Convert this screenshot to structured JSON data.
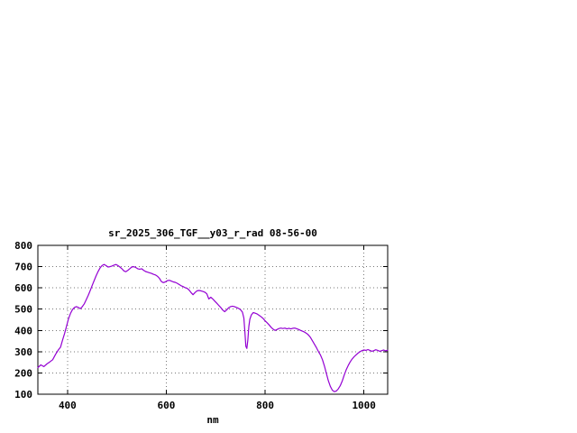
{
  "window": {
    "background": "#ffffff"
  },
  "chart_data": {
    "type": "line",
    "title": "sr_2025_306_TGF__y03_r_rad 08-56-00",
    "xlabel": "nm",
    "ylabel": "",
    "xlim": [
      340,
      1048
    ],
    "ylim": [
      100,
      800
    ],
    "x_ticks": [
      400,
      600,
      800,
      1000
    ],
    "y_ticks": [
      100,
      200,
      300,
      400,
      500,
      600,
      700,
      800
    ],
    "grid": true,
    "legend": "none",
    "series": [
      {
        "name": "sr_2025_306_TGF__y03_r_rad",
        "color": "#9400d3",
        "points": [
          [
            340,
            225
          ],
          [
            346,
            238
          ],
          [
            352,
            230
          ],
          [
            358,
            242
          ],
          [
            364,
            252
          ],
          [
            370,
            262
          ],
          [
            376,
            288
          ],
          [
            382,
            310
          ],
          [
            386,
            322
          ],
          [
            390,
            355
          ],
          [
            394,
            385
          ],
          [
            398,
            420
          ],
          [
            402,
            455
          ],
          [
            406,
            480
          ],
          [
            410,
            498
          ],
          [
            414,
            508
          ],
          [
            418,
            512
          ],
          [
            422,
            508
          ],
          [
            426,
            502
          ],
          [
            430,
            512
          ],
          [
            434,
            525
          ],
          [
            438,
            545
          ],
          [
            442,
            565
          ],
          [
            446,
            588
          ],
          [
            450,
            612
          ],
          [
            454,
            635
          ],
          [
            458,
            658
          ],
          [
            462,
            678
          ],
          [
            466,
            695
          ],
          [
            470,
            705
          ],
          [
            474,
            710
          ],
          [
            478,
            705
          ],
          [
            482,
            698
          ],
          [
            486,
            700
          ],
          [
            490,
            703
          ],
          [
            494,
            707
          ],
          [
            498,
            710
          ],
          [
            502,
            705
          ],
          [
            506,
            698
          ],
          [
            510,
            690
          ],
          [
            514,
            680
          ],
          [
            518,
            676
          ],
          [
            522,
            682
          ],
          [
            526,
            690
          ],
          [
            530,
            698
          ],
          [
            534,
            700
          ],
          [
            538,
            696
          ],
          [
            542,
            690
          ],
          [
            546,
            688
          ],
          [
            550,
            690
          ],
          [
            554,
            683
          ],
          [
            558,
            677
          ],
          [
            562,
            674
          ],
          [
            566,
            671
          ],
          [
            570,
            668
          ],
          [
            574,
            664
          ],
          [
            578,
            661
          ],
          [
            582,
            655
          ],
          [
            586,
            645
          ],
          [
            590,
            630
          ],
          [
            594,
            625
          ],
          [
            598,
            628
          ],
          [
            602,
            634
          ],
          [
            606,
            636
          ],
          [
            610,
            632
          ],
          [
            614,
            628
          ],
          [
            618,
            626
          ],
          [
            622,
            622
          ],
          [
            626,
            616
          ],
          [
            630,
            610
          ],
          [
            634,
            606
          ],
          [
            638,
            601
          ],
          [
            642,
            598
          ],
          [
            646,
            590
          ],
          [
            650,
            578
          ],
          [
            654,
            568
          ],
          [
            658,
            578
          ],
          [
            662,
            586
          ],
          [
            666,
            588
          ],
          [
            670,
            586
          ],
          [
            674,
            583
          ],
          [
            678,
            580
          ],
          [
            682,
            572
          ],
          [
            686,
            548
          ],
          [
            690,
            556
          ],
          [
            694,
            548
          ],
          [
            698,
            538
          ],
          [
            702,
            528
          ],
          [
            706,
            518
          ],
          [
            710,
            508
          ],
          [
            714,
            496
          ],
          [
            718,
            488
          ],
          [
            722,
            496
          ],
          [
            726,
            506
          ],
          [
            730,
            512
          ],
          [
            734,
            514
          ],
          [
            738,
            512
          ],
          [
            742,
            508
          ],
          [
            746,
            504
          ],
          [
            750,
            498
          ],
          [
            754,
            486
          ],
          [
            757,
            458
          ],
          [
            759,
            395
          ],
          [
            761,
            325
          ],
          [
            763,
            315
          ],
          [
            765,
            355
          ],
          [
            767,
            418
          ],
          [
            769,
            452
          ],
          [
            772,
            472
          ],
          [
            776,
            484
          ],
          [
            780,
            481
          ],
          [
            784,
            477
          ],
          [
            788,
            471
          ],
          [
            792,
            464
          ],
          [
            796,
            456
          ],
          [
            800,
            445
          ],
          [
            804,
            436
          ],
          [
            808,
            426
          ],
          [
            812,
            415
          ],
          [
            816,
            406
          ],
          [
            820,
            400
          ],
          [
            824,
            404
          ],
          [
            828,
            409
          ],
          [
            832,
            411
          ],
          [
            836,
            409
          ],
          [
            840,
            411
          ],
          [
            844,
            407
          ],
          [
            848,
            410
          ],
          [
            852,
            407
          ],
          [
            856,
            410
          ],
          [
            860,
            411
          ],
          [
            864,
            408
          ],
          [
            868,
            404
          ],
          [
            872,
            400
          ],
          [
            876,
            396
          ],
          [
            880,
            392
          ],
          [
            884,
            386
          ],
          [
            888,
            378
          ],
          [
            892,
            366
          ],
          [
            896,
            350
          ],
          [
            900,
            334
          ],
          [
            904,
            318
          ],
          [
            908,
            300
          ],
          [
            912,
            284
          ],
          [
            916,
            262
          ],
          [
            920,
            232
          ],
          [
            924,
            198
          ],
          [
            928,
            163
          ],
          [
            932,
            137
          ],
          [
            936,
            119
          ],
          [
            940,
            112
          ],
          [
            944,
            115
          ],
          [
            948,
            125
          ],
          [
            952,
            140
          ],
          [
            956,
            162
          ],
          [
            960,
            190
          ],
          [
            964,
            215
          ],
          [
            968,
            235
          ],
          [
            972,
            252
          ],
          [
            976,
            265
          ],
          [
            980,
            276
          ],
          [
            984,
            285
          ],
          [
            988,
            293
          ],
          [
            992,
            300
          ],
          [
            996,
            305
          ],
          [
            1000,
            308
          ],
          [
            1004,
            306
          ],
          [
            1008,
            310
          ],
          [
            1012,
            306
          ],
          [
            1016,
            302
          ],
          [
            1020,
            305
          ],
          [
            1024,
            309
          ],
          [
            1028,
            306
          ],
          [
            1032,
            302
          ],
          [
            1036,
            305
          ],
          [
            1040,
            308
          ],
          [
            1044,
            304
          ],
          [
            1048,
            307
          ]
        ]
      }
    ]
  }
}
